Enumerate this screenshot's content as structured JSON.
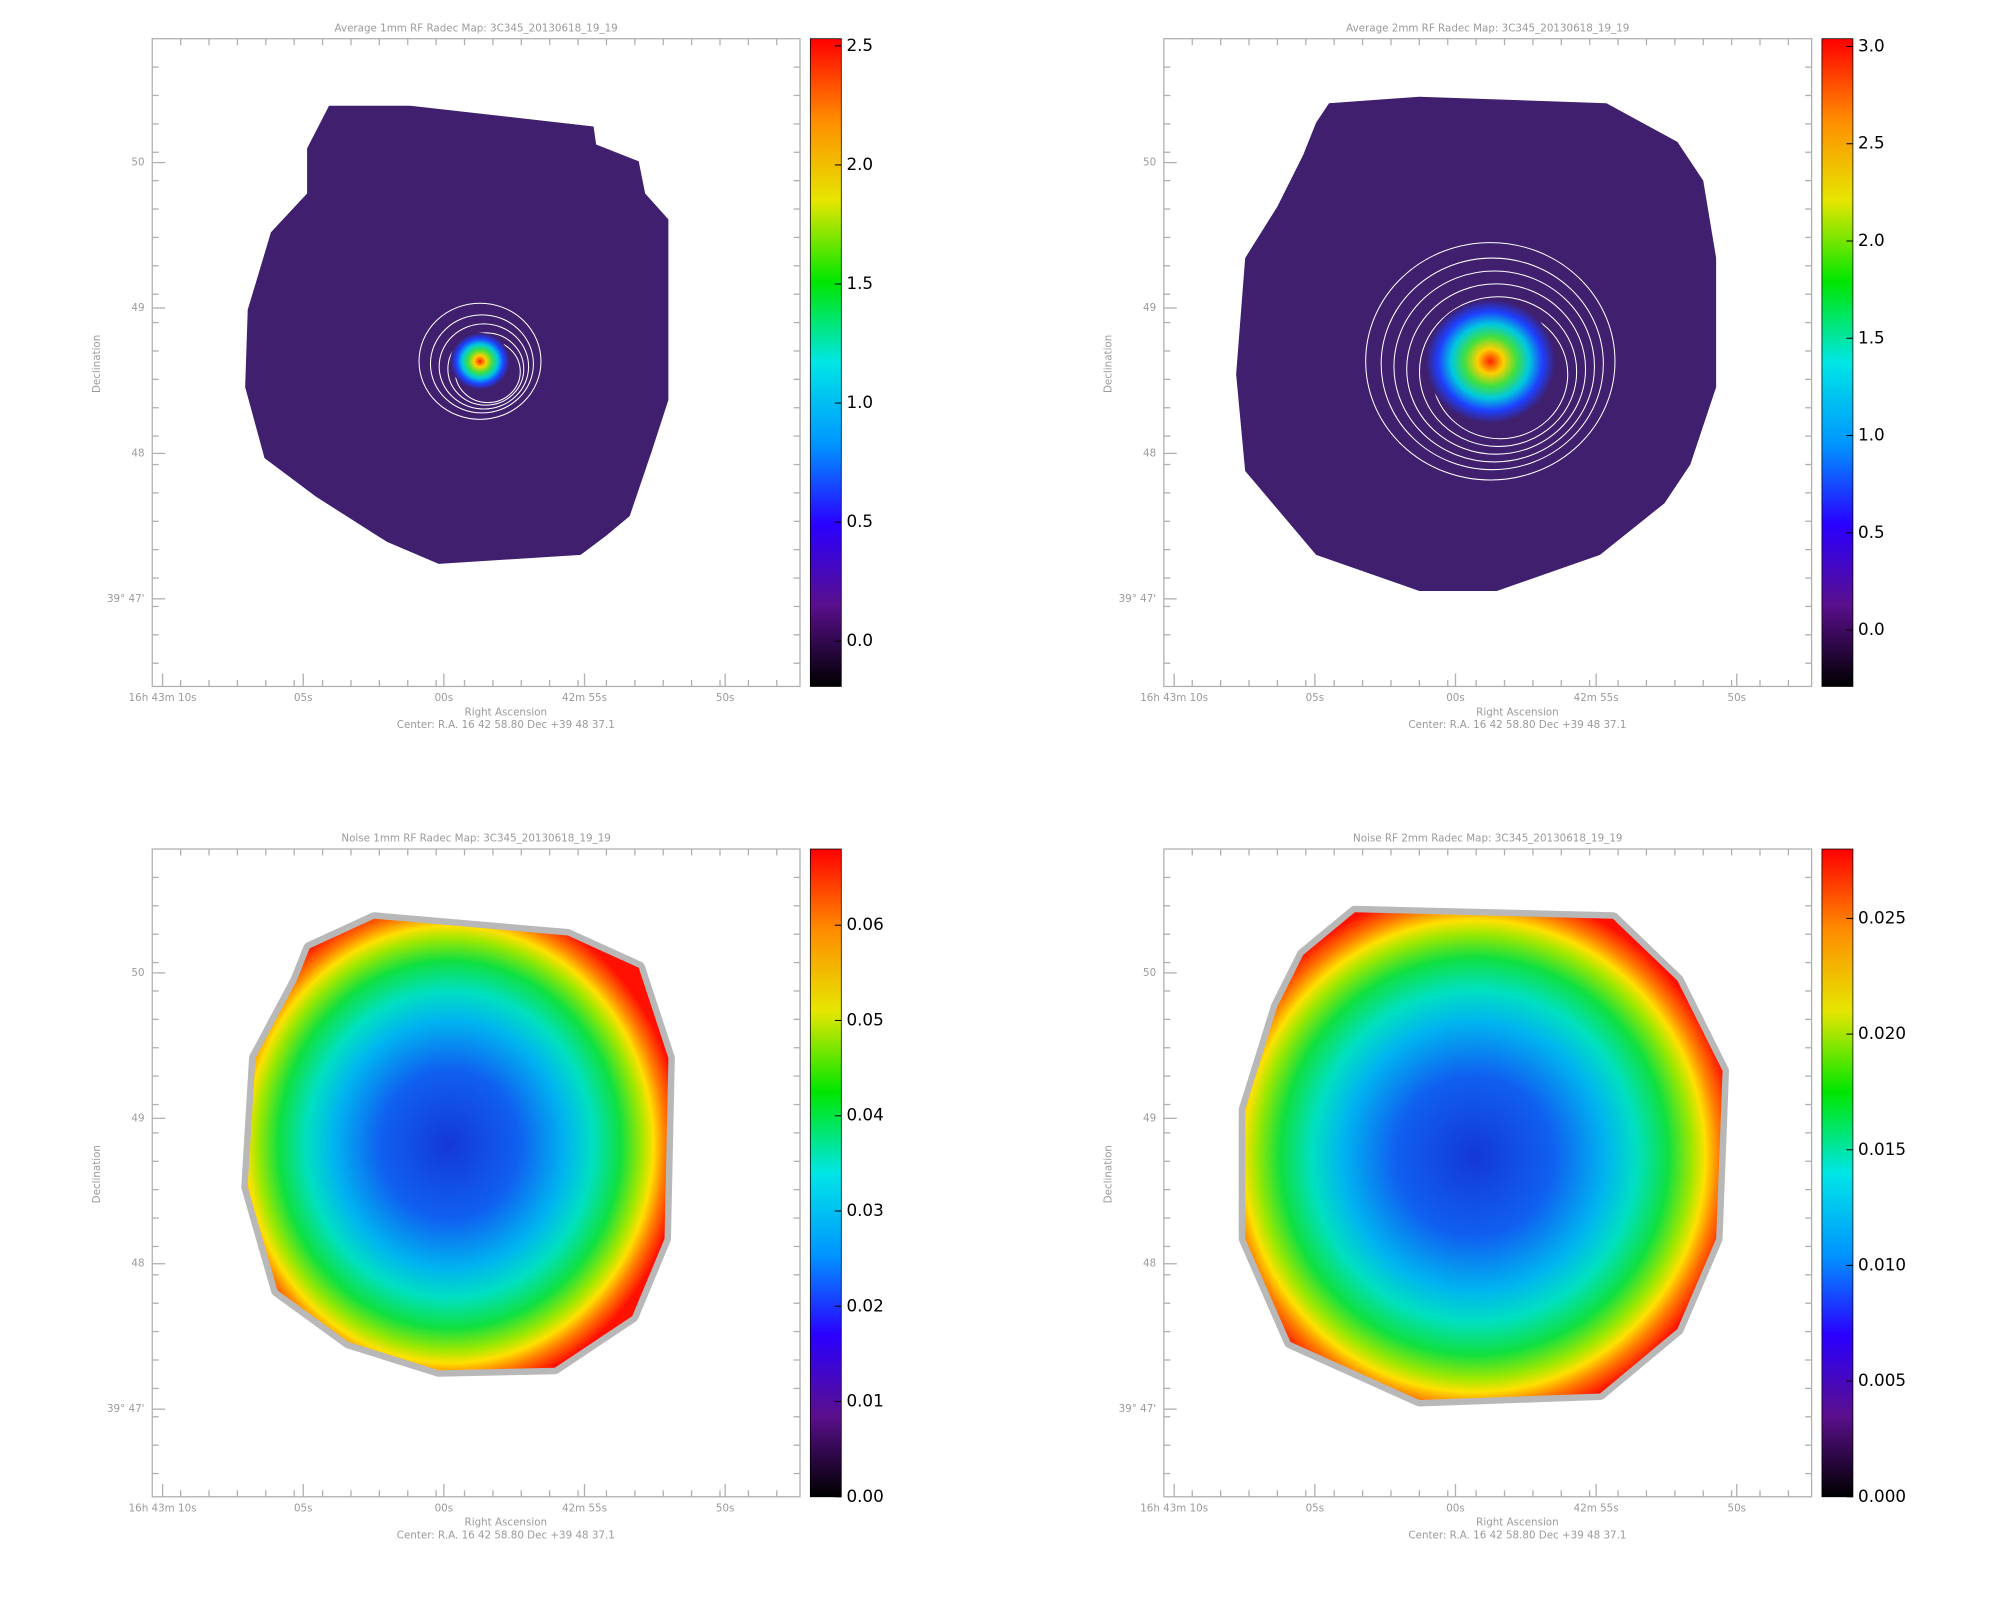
{
  "chart_data": [
    {
      "type": "heatmap",
      "title": "Average 1mm RF Radec Map: 3C345_20130618_19_19",
      "xlabel": "Right Ascension",
      "ylabel": "Declination",
      "note": "Center:  R.A. 16 42 58.80    Dec  +39 48 37.1",
      "xtick_labels": [
        "16h 43m 10s",
        "05s",
        "00s",
        "42m 55s",
        "50s"
      ],
      "ytick_labels": [
        "50",
        "49",
        "48",
        "39° 47'"
      ],
      "clim": [
        -0.19,
        2.53
      ],
      "cticks": [
        {
          "value": 0,
          "label": "0.0"
        },
        0.5,
        {
          "value": 1,
          "label": "1.0"
        },
        1.5,
        {
          "value": 2,
          "label": "2.0"
        },
        2.5
      ],
      "colormap": [
        "#000000",
        "#5a0f8c",
        "#2a00ff",
        "#0096ff",
        "#00e6e6",
        "#00e600",
        "#e6e600",
        "#ff8c00",
        "#ff0000"
      ]
    },
    {
      "type": "heatmap",
      "title": "Average 2mm RF Radec Map: 3C345_20130618_19_19",
      "xlabel": "Right Ascension",
      "ylabel": "Declination",
      "note": "Center:  R.A. 16 42 58.80    Dec  +39 48 37.1",
      "xtick_labels": [
        "16h 43m 10s",
        "05s",
        "00s",
        "42m 55s",
        "50s"
      ],
      "ytick_labels": [
        "50",
        "49",
        "48",
        "39° 47'"
      ],
      "clim": [
        -0.29,
        3.04
      ],
      "cticks": [
        {
          "value": 0,
          "label": "0.0"
        },
        0.5,
        {
          "value": 1,
          "label": "1.0"
        },
        1.5,
        {
          "value": 2,
          "label": "2.0"
        },
        2.5,
        {
          "value": 3,
          "label": "3.0"
        }
      ],
      "colormap": [
        "#000000",
        "#5a0f8c",
        "#2a00ff",
        "#0096ff",
        "#00e6e6",
        "#00e600",
        "#e6e600",
        "#ff8c00",
        "#ff0000"
      ]
    },
    {
      "type": "heatmap",
      "title": "Noise 1mm RF Radec Map: 3C345_20130618_19_19",
      "xlabel": "Right Ascension",
      "ylabel": "Declination",
      "note": "Center:  R.A. 16 42 58.80    Dec  +39 48 37.1",
      "xtick_labels": [
        "16h 43m 10s",
        "05s",
        "00s",
        "42m 55s",
        "50s"
      ],
      "ytick_labels": [
        "50",
        "49",
        "48",
        "39° 47'"
      ],
      "clim": [
        0,
        0.068
      ],
      "cticks": [
        {
          "value": 0,
          "label": "0.00"
        },
        0.01,
        0.02,
        0.03,
        0.04,
        0.05,
        0.06
      ],
      "colormap": [
        "#000000",
        "#5a0f8c",
        "#2a00ff",
        "#0096ff",
        "#00e6e6",
        "#00e600",
        "#e6e600",
        "#ff8c00",
        "#ff0000"
      ]
    },
    {
      "type": "heatmap",
      "title": "Noise RF 2mm Radec Map: 3C345_20130618_19_19",
      "xlabel": "Right Ascension",
      "ylabel": "Declination",
      "note": "Center:  R.A. 16 42 58.80    Dec  +39 48 37.1",
      "xtick_labels": [
        "16h 43m 10s",
        "05s",
        "00s",
        "42m 55s",
        "50s"
      ],
      "ytick_labels": [
        "50",
        "49",
        "48",
        "39° 47'"
      ],
      "clim": [
        0,
        0.028
      ],
      "cticks": [
        {
          "value": 0,
          "label": "0.000"
        },
        0.005,
        {
          "value": 0.01,
          "label": "0.010"
        },
        0.015,
        {
          "value": 0.02,
          "label": "0.020"
        },
        0.025
      ],
      "colormap": [
        "#000000",
        "#5a0f8c",
        "#2a00ff",
        "#0096ff",
        "#00e6e6",
        "#00e600",
        "#e6e600",
        "#ff8c00",
        "#ff0000"
      ]
    }
  ]
}
